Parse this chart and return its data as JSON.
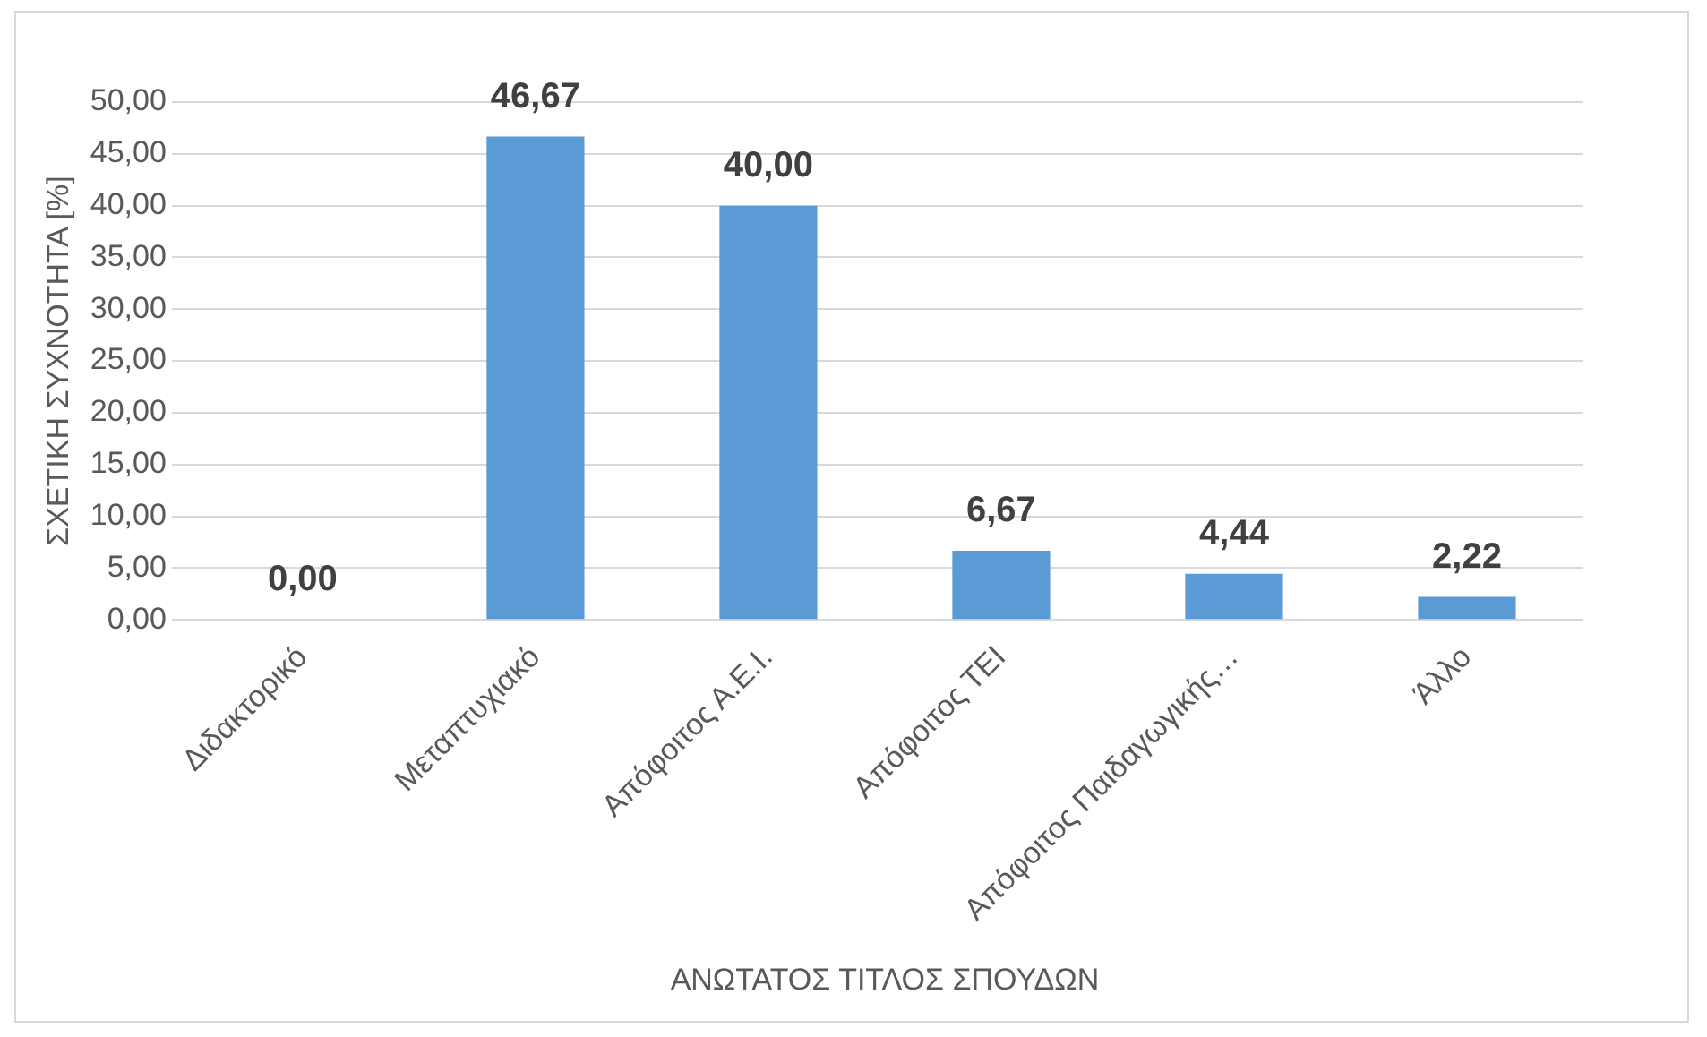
{
  "chart_data": {
    "type": "bar",
    "xlabel": "ΑΝΩΤΑΤΟΣ ΤΙΤΛΟΣ ΣΠΟΥΔΩΝ",
    "ylabel": "ΣΧΕΤΙΚΗ ΣΥΧΝΟΤΗΤΑ [%]",
    "categories": [
      "Διδακτορικό",
      "Μεταπτυχιακό",
      "Απόφοιτος Α.Ε.Ι.",
      "Απόφοιτος ΤΕΙ",
      "Απόφοιτος Παιδαγωγικής…",
      "Άλλο"
    ],
    "values": [
      0,
      46.67,
      40.0,
      6.67,
      4.44,
      2.22
    ],
    "value_labels": [
      "0,00",
      "46,67",
      "40,00",
      "6,67",
      "4,44",
      "2,22"
    ],
    "color": "#5b9bd5",
    "ylim": [
      0,
      50
    ],
    "yticks": [
      {
        "value": 0,
        "label": "0,00"
      },
      {
        "value": 5,
        "label": "5,00"
      },
      {
        "value": 10,
        "label": "10,00"
      },
      {
        "value": 15,
        "label": "15,00"
      },
      {
        "value": 20,
        "label": "20,00"
      },
      {
        "value": 25,
        "label": "25,00"
      },
      {
        "value": 30,
        "label": "30,00"
      },
      {
        "value": 35,
        "label": "35,00"
      },
      {
        "value": 40,
        "label": "40,00"
      },
      {
        "value": 45,
        "label": "45,00"
      },
      {
        "value": 50,
        "label": "50,00"
      }
    ],
    "grid": "y",
    "legend": false
  }
}
